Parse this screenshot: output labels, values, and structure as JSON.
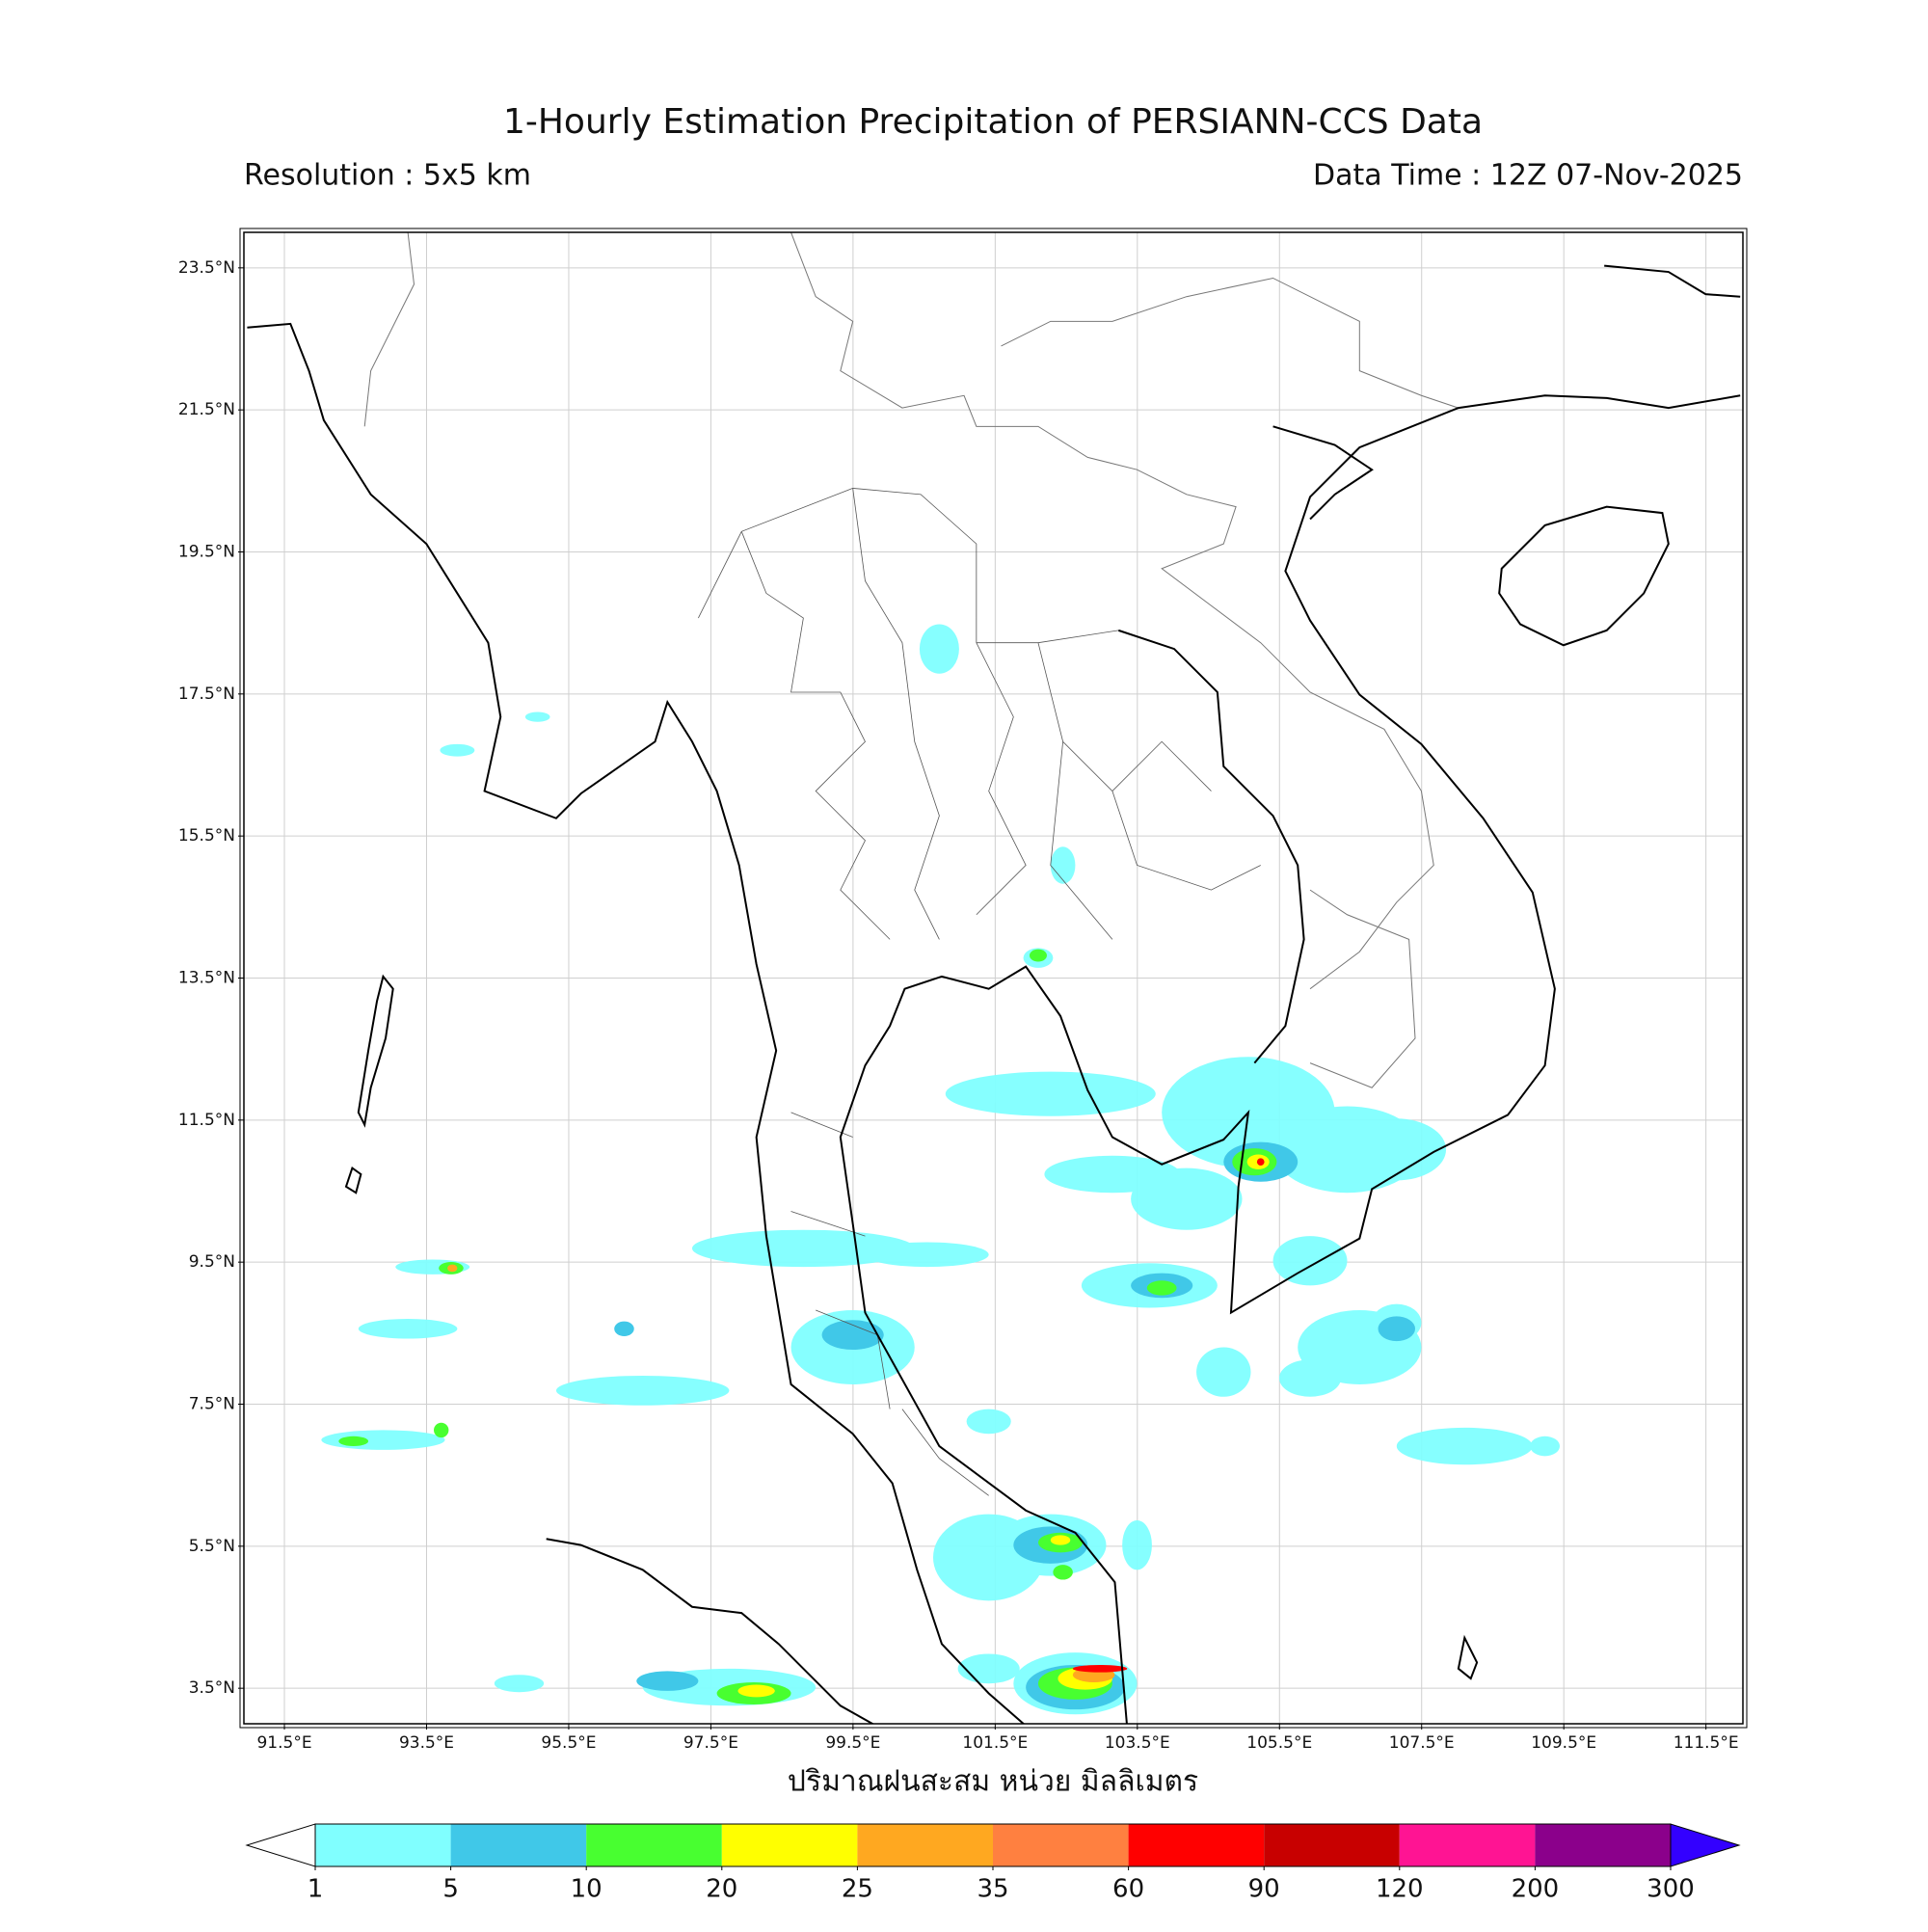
{
  "map": {
    "title": "1-Hourly Estimation Precipitation of PERSIANN-CCS Data",
    "resolution": "Resolution : 5x5 km",
    "data_time": "Data Time : 12Z 07-Nov-2025",
    "xlim": [
      90.93,
      112.02
    ],
    "ylim": [
      3.0,
      24.0
    ],
    "xticks": [
      {
        "value": 91.5,
        "label": "91.5°E"
      },
      {
        "value": 93.5,
        "label": "93.5°E"
      },
      {
        "value": 95.5,
        "label": "95.5°E"
      },
      {
        "value": 97.5,
        "label": "97.5°E"
      },
      {
        "value": 99.5,
        "label": "99.5°E"
      },
      {
        "value": 101.5,
        "label": "101.5°E"
      },
      {
        "value": 103.5,
        "label": "103.5°E"
      },
      {
        "value": 105.5,
        "label": "105.5°E"
      },
      {
        "value": 107.5,
        "label": "107.5°E"
      },
      {
        "value": 109.5,
        "label": "109.5°E"
      },
      {
        "value": 111.5,
        "label": "111.5°E"
      }
    ],
    "yticks": [
      {
        "value": 3.5,
        "label": "3.5°N"
      },
      {
        "value": 5.5,
        "label": "5.5°N"
      },
      {
        "value": 7.5,
        "label": "7.5°N"
      },
      {
        "value": 9.5,
        "label": "9.5°N"
      },
      {
        "value": 11.5,
        "label": "11.5°N"
      },
      {
        "value": 13.5,
        "label": "13.5°N"
      },
      {
        "value": 15.5,
        "label": "15.5°N"
      },
      {
        "value": 17.5,
        "label": "17.5°N"
      },
      {
        "value": 19.5,
        "label": "19.5°N"
      },
      {
        "value": 21.5,
        "label": "21.5°N"
      },
      {
        "value": 23.5,
        "label": "23.5°N"
      }
    ],
    "grid": true
  },
  "colorbar": {
    "label": "ปริมาณฝนสะสม หน่วย มิลลิเมตร",
    "levels": [
      1,
      5,
      10,
      20,
      25,
      35,
      60,
      90,
      120,
      200,
      300
    ],
    "colors": [
      "#80ffff",
      "#40c8e8",
      "#48ff30",
      "#ffff00",
      "#ffa820",
      "#ff8040",
      "#ff0000",
      "#c80000",
      "#ff1493",
      "#8b008b"
    ],
    "under_color": "#ffffff",
    "over_color": "#3300ff"
  }
}
